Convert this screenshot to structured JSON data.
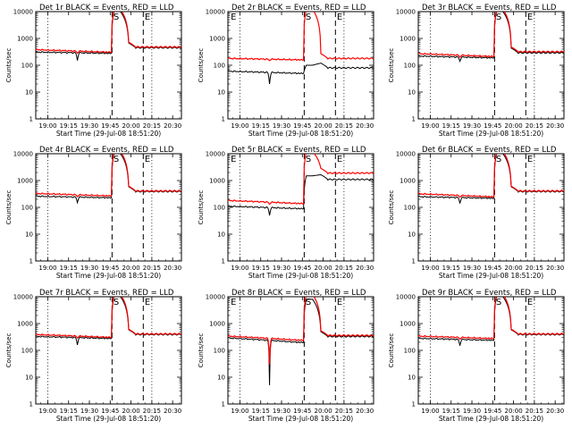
{
  "chart_data": [
    {
      "type": "line",
      "title": "Det 1r BLACK = Events, RED = LLD",
      "xlabel": "Start Time (29-Jul-08 18:51:20)",
      "ylabel": "Counts/sec",
      "yscale": "log",
      "ylim": [
        1,
        10000
      ],
      "y_ticks": [
        "1",
        "10",
        "100",
        "1000",
        "10000"
      ],
      "x_ticks": [
        "19:00",
        "19:15",
        "19:30",
        "19:45",
        "20:00",
        "20:15",
        "20:30"
      ],
      "markers": [
        "S",
        "E"
      ],
      "series": [
        {
          "name": "BLACK",
          "color": "#000000",
          "pre": 310,
          "mid": 280,
          "dip": 150,
          "burst": 10000,
          "post": 450
        },
        {
          "name": "RED",
          "color": "#ff0000",
          "pre": 380,
          "mid": 310,
          "dip": 280,
          "burst": 12000,
          "post": 480
        }
      ]
    },
    {
      "type": "line",
      "title": "Det 2r BLACK = Events, RED = LLD",
      "xlabel": "Start Time (29-Jul-08 18:51:20)",
      "ylabel": "Counts/sec",
      "yscale": "log",
      "ylim": [
        1,
        10000
      ],
      "y_ticks": [
        "1",
        "10",
        "100",
        "1000",
        "10000"
      ],
      "x_ticks": [
        "19:00",
        "19:15",
        "19:30",
        "19:45",
        "20:00",
        "20:15",
        "20:30"
      ],
      "markers": [
        "E",
        "S",
        "E"
      ],
      "series": [
        {
          "name": "BLACK",
          "color": "#000000",
          "pre": 60,
          "mid": 50,
          "dip": 20,
          "burst": 100,
          "post": 80
        },
        {
          "name": "RED",
          "color": "#ff0000",
          "pre": 180,
          "mid": 160,
          "dip": 150,
          "burst": 12000,
          "post": 180
        }
      ]
    },
    {
      "type": "line",
      "title": "Det 3r BLACK = Events, RED = LLD",
      "xlabel": "Start Time (29-Jul-08 18:51:20)",
      "ylabel": "Counts/sec",
      "yscale": "log",
      "ylim": [
        1,
        10000
      ],
      "y_ticks": [
        "1",
        "10",
        "100",
        "1000",
        "10000"
      ],
      "x_ticks": [
        "19:00",
        "19:15",
        "19:30",
        "19:45",
        "20:00",
        "20:15",
        "20:30"
      ],
      "markers": [
        "S",
        "E"
      ],
      "series": [
        {
          "name": "BLACK",
          "color": "#000000",
          "pre": 220,
          "mid": 190,
          "dip": 140,
          "burst": 10000,
          "post": 290
        },
        {
          "name": "RED",
          "color": "#ff0000",
          "pre": 270,
          "mid": 215,
          "dip": 200,
          "burst": 12000,
          "post": 320
        }
      ]
    },
    {
      "type": "line",
      "title": "Det 4r BLACK = Events, RED = LLD",
      "xlabel": "Start Time (29-Jul-08 18:51:20)",
      "ylabel": "Counts/sec",
      "yscale": "log",
      "ylim": [
        1,
        10000
      ],
      "y_ticks": [
        "1",
        "10",
        "100",
        "1000",
        "10000"
      ],
      "x_ticks": [
        "19:00",
        "19:15",
        "19:30",
        "19:45",
        "20:00",
        "20:15",
        "20:30"
      ],
      "markers": [
        "S",
        "E"
      ],
      "series": [
        {
          "name": "BLACK",
          "color": "#000000",
          "pre": 260,
          "mid": 230,
          "dip": 150,
          "burst": 10000,
          "post": 390
        },
        {
          "name": "RED",
          "color": "#ff0000",
          "pre": 330,
          "mid": 270,
          "dip": 250,
          "burst": 12000,
          "post": 410
        }
      ]
    },
    {
      "type": "line",
      "title": "Det 5r BLACK = Events, RED = LLD",
      "xlabel": "Start Time (29-Jul-08 18:51:20)",
      "ylabel": "Counts/sec",
      "yscale": "log",
      "ylim": [
        1,
        10000
      ],
      "y_ticks": [
        "1",
        "10",
        "100",
        "1000",
        "10000"
      ],
      "x_ticks": [
        "19:00",
        "19:15",
        "19:30",
        "19:45",
        "20:00",
        "20:15",
        "20:30"
      ],
      "markers": [
        "E",
        "S",
        "E"
      ],
      "series": [
        {
          "name": "BLACK",
          "color": "#000000",
          "pre": 110,
          "mid": 90,
          "dip": 50,
          "burst": 1500,
          "post": 1100
        },
        {
          "name": "RED",
          "color": "#ff0000",
          "pre": 180,
          "mid": 140,
          "dip": 130,
          "burst": 12000,
          "post": 1900
        }
      ]
    },
    {
      "type": "line",
      "title": "Det 6r BLACK = Events, RED = LLD",
      "xlabel": "Start Time (29-Jul-08 18:51:20)",
      "ylabel": "Counts/sec",
      "yscale": "log",
      "ylim": [
        1,
        10000
      ],
      "y_ticks": [
        "1",
        "10",
        "100",
        "1000",
        "10000"
      ],
      "x_ticks": [
        "19:00",
        "19:15",
        "19:30",
        "19:45",
        "20:00",
        "20:15",
        "20:30"
      ],
      "markers": [
        "S",
        "E"
      ],
      "series": [
        {
          "name": "BLACK",
          "color": "#000000",
          "pre": 250,
          "mid": 220,
          "dip": 140,
          "burst": 10000,
          "post": 390
        },
        {
          "name": "RED",
          "color": "#ff0000",
          "pre": 320,
          "mid": 250,
          "dip": 240,
          "burst": 12000,
          "post": 410
        }
      ]
    },
    {
      "type": "line",
      "title": "Det 7r BLACK = Events, RED = LLD",
      "xlabel": "Start Time (29-Jul-08 18:51:20)",
      "ylabel": "Counts/sec",
      "yscale": "log",
      "ylim": [
        1,
        10000
      ],
      "y_ticks": [
        "1",
        "10",
        "100",
        "1000",
        "10000"
      ],
      "x_ticks": [
        "19:00",
        "19:15",
        "19:30",
        "19:45",
        "20:00",
        "20:15",
        "20:30"
      ],
      "markers": [
        "S",
        "E"
      ],
      "series": [
        {
          "name": "BLACK",
          "color": "#000000",
          "pre": 330,
          "mid": 280,
          "dip": 160,
          "burst": 10000,
          "post": 390
        },
        {
          "name": "RED",
          "color": "#ff0000",
          "pre": 390,
          "mid": 310,
          "dip": 290,
          "burst": 12000,
          "post": 410
        }
      ]
    },
    {
      "type": "line",
      "title": "Det 8r BLACK = Events, RED = LLD",
      "xlabel": "Start Time (29-Jul-08 18:51:20)",
      "ylabel": "Counts/sec",
      "yscale": "log",
      "ylim": [
        1,
        10000
      ],
      "y_ticks": [
        "1",
        "10",
        "100",
        "1000",
        "10000"
      ],
      "x_ticks": [
        "19:00",
        "19:15",
        "19:30",
        "19:45",
        "20:00",
        "20:15",
        "20:30"
      ],
      "markers": [
        "E",
        "S",
        "E"
      ],
      "series": [
        {
          "name": "BLACK",
          "color": "#000000",
          "pre": 290,
          "mid": 200,
          "dip": 5,
          "burst": 8000,
          "post": 330
        },
        {
          "name": "RED",
          "color": "#ff0000",
          "pre": 340,
          "mid": 240,
          "dip": 30,
          "burst": 12000,
          "post": 360
        }
      ]
    },
    {
      "type": "line",
      "title": "Det 9r BLACK = Events, RED = LLD",
      "xlabel": "Start Time (29-Jul-08 18:51:20)",
      "ylabel": "Counts/sec",
      "yscale": "log",
      "ylim": [
        1,
        10000
      ],
      "y_ticks": [
        "1",
        "10",
        "100",
        "1000",
        "10000"
      ],
      "x_ticks": [
        "19:00",
        "19:15",
        "19:30",
        "19:45",
        "20:00",
        "20:15",
        "20:30"
      ],
      "markers": [
        "S",
        "E"
      ],
      "series": [
        {
          "name": "BLACK",
          "color": "#000000",
          "pre": 280,
          "mid": 240,
          "dip": 150,
          "burst": 10000,
          "post": 390
        },
        {
          "name": "RED",
          "color": "#ff0000",
          "pre": 340,
          "mid": 280,
          "dip": 260,
          "burst": 12000,
          "post": 410
        }
      ]
    }
  ]
}
